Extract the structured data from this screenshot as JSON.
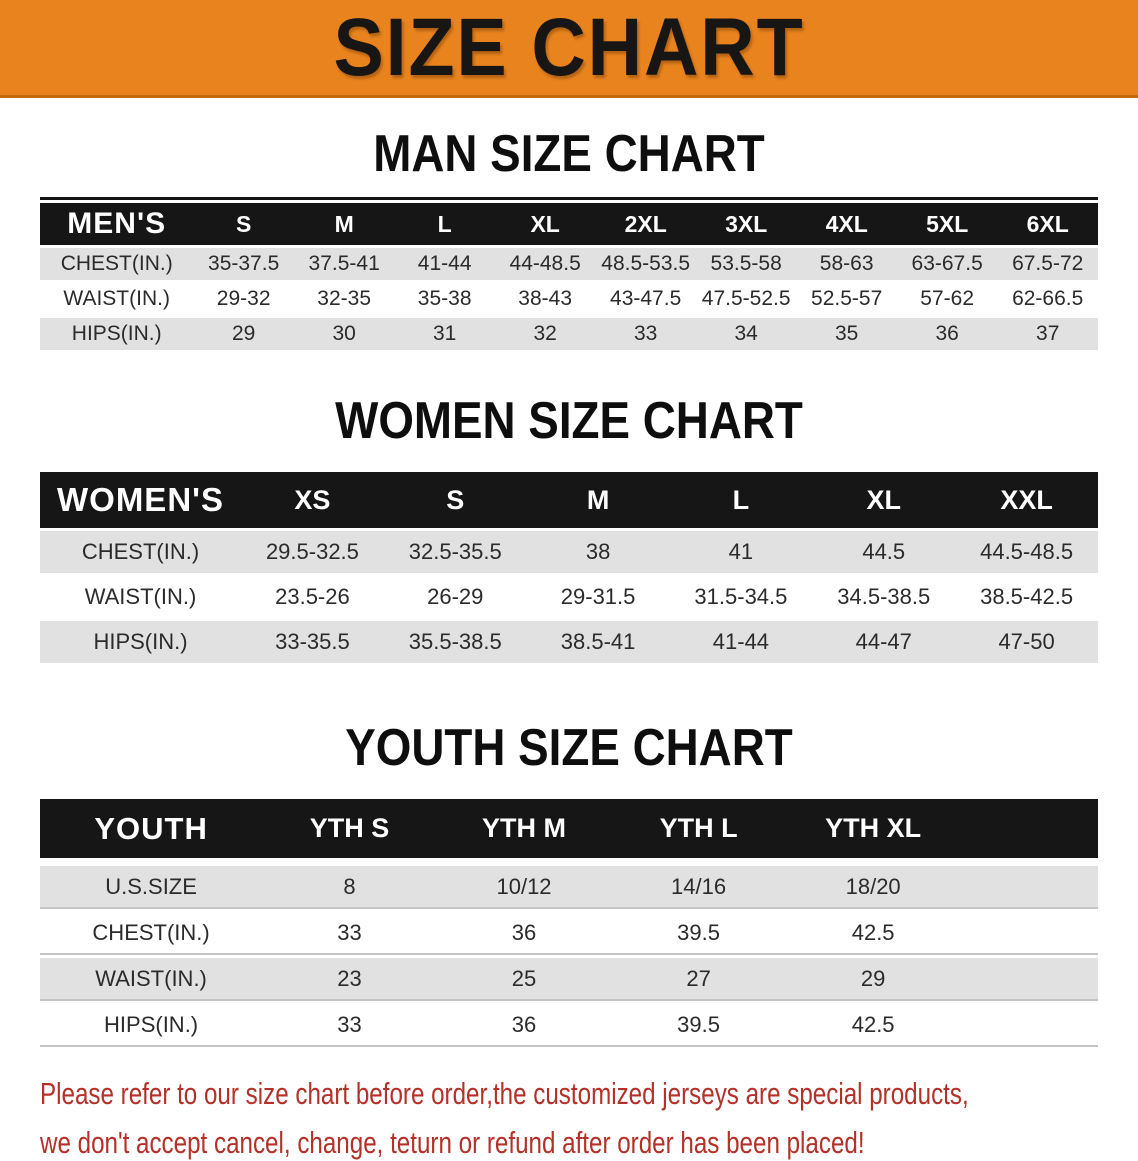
{
  "banner": {
    "title": "SIZE CHART",
    "bg_color": "#E9831E"
  },
  "sections": [
    {
      "id": "men",
      "heading": "MAN SIZE CHART",
      "table": {
        "group_label": "MEN'S",
        "columns": [
          "S",
          "M",
          "L",
          "XL",
          "2XL",
          "3XL",
          "4XL",
          "5XL",
          "6XL"
        ],
        "rows": [
          {
            "label": "CHEST(IN.)",
            "values": [
              "35-37.5",
              "37.5-41",
              "41-44",
              "44-48.5",
              "48.5-53.5",
              "53.5-58",
              "58-63",
              "63-67.5",
              "67.5-72"
            ]
          },
          {
            "label": "WAIST(IN.)",
            "values": [
              "29-32",
              "32-35",
              "35-38",
              "38-43",
              "43-47.5",
              "47.5-52.5",
              "52.5-57",
              "57-62",
              "62-66.5"
            ]
          },
          {
            "label": "HIPS(IN.)",
            "values": [
              "29",
              "30",
              "31",
              "32",
              "33",
              "34",
              "35",
              "36",
              "37"
            ]
          }
        ]
      }
    },
    {
      "id": "women",
      "heading": "WOMEN SIZE CHART",
      "table": {
        "group_label": "WOMEN'S",
        "columns": [
          "XS",
          "S",
          "M",
          "L",
          "XL",
          "XXL"
        ],
        "rows": [
          {
            "label": "CHEST(IN.)",
            "values": [
              "29.5-32.5",
              "32.5-35.5",
              "38",
              "41",
              "44.5",
              "44.5-48.5"
            ]
          },
          {
            "label": "WAIST(IN.)",
            "values": [
              "23.5-26",
              "26-29",
              "29-31.5",
              "31.5-34.5",
              "34.5-38.5",
              "38.5-42.5"
            ]
          },
          {
            "label": "HIPS(IN.)",
            "values": [
              "33-35.5",
              "35.5-38.5",
              "38.5-41",
              "41-44",
              "44-47",
              "47-50"
            ]
          }
        ]
      }
    },
    {
      "id": "youth",
      "heading": "YOUTH SIZE CHART",
      "table": {
        "group_label": "YOUTH",
        "columns": [
          "YTH S",
          "YTH M",
          "YTH L",
          "YTH XL"
        ],
        "rows": [
          {
            "label": "U.S.SIZE",
            "values": [
              "8",
              "10/12",
              "14/16",
              "18/20"
            ]
          },
          {
            "label": "CHEST(IN.)",
            "values": [
              "33",
              "36",
              "39.5",
              "42.5"
            ]
          },
          {
            "label": "WAIST(IN.)",
            "values": [
              "23",
              "25",
              "27",
              "29"
            ]
          },
          {
            "label": "HIPS(IN.)",
            "values": [
              "33",
              "36",
              "39.5",
              "42.5"
            ]
          }
        ]
      }
    }
  ],
  "footer": {
    "line1": "Please refer to our size chart before order,the customized jerseys are special products,",
    "line2": "we don't accept cancel, change, teturn or refund after order has been placed!",
    "text_color": "#B43028"
  }
}
